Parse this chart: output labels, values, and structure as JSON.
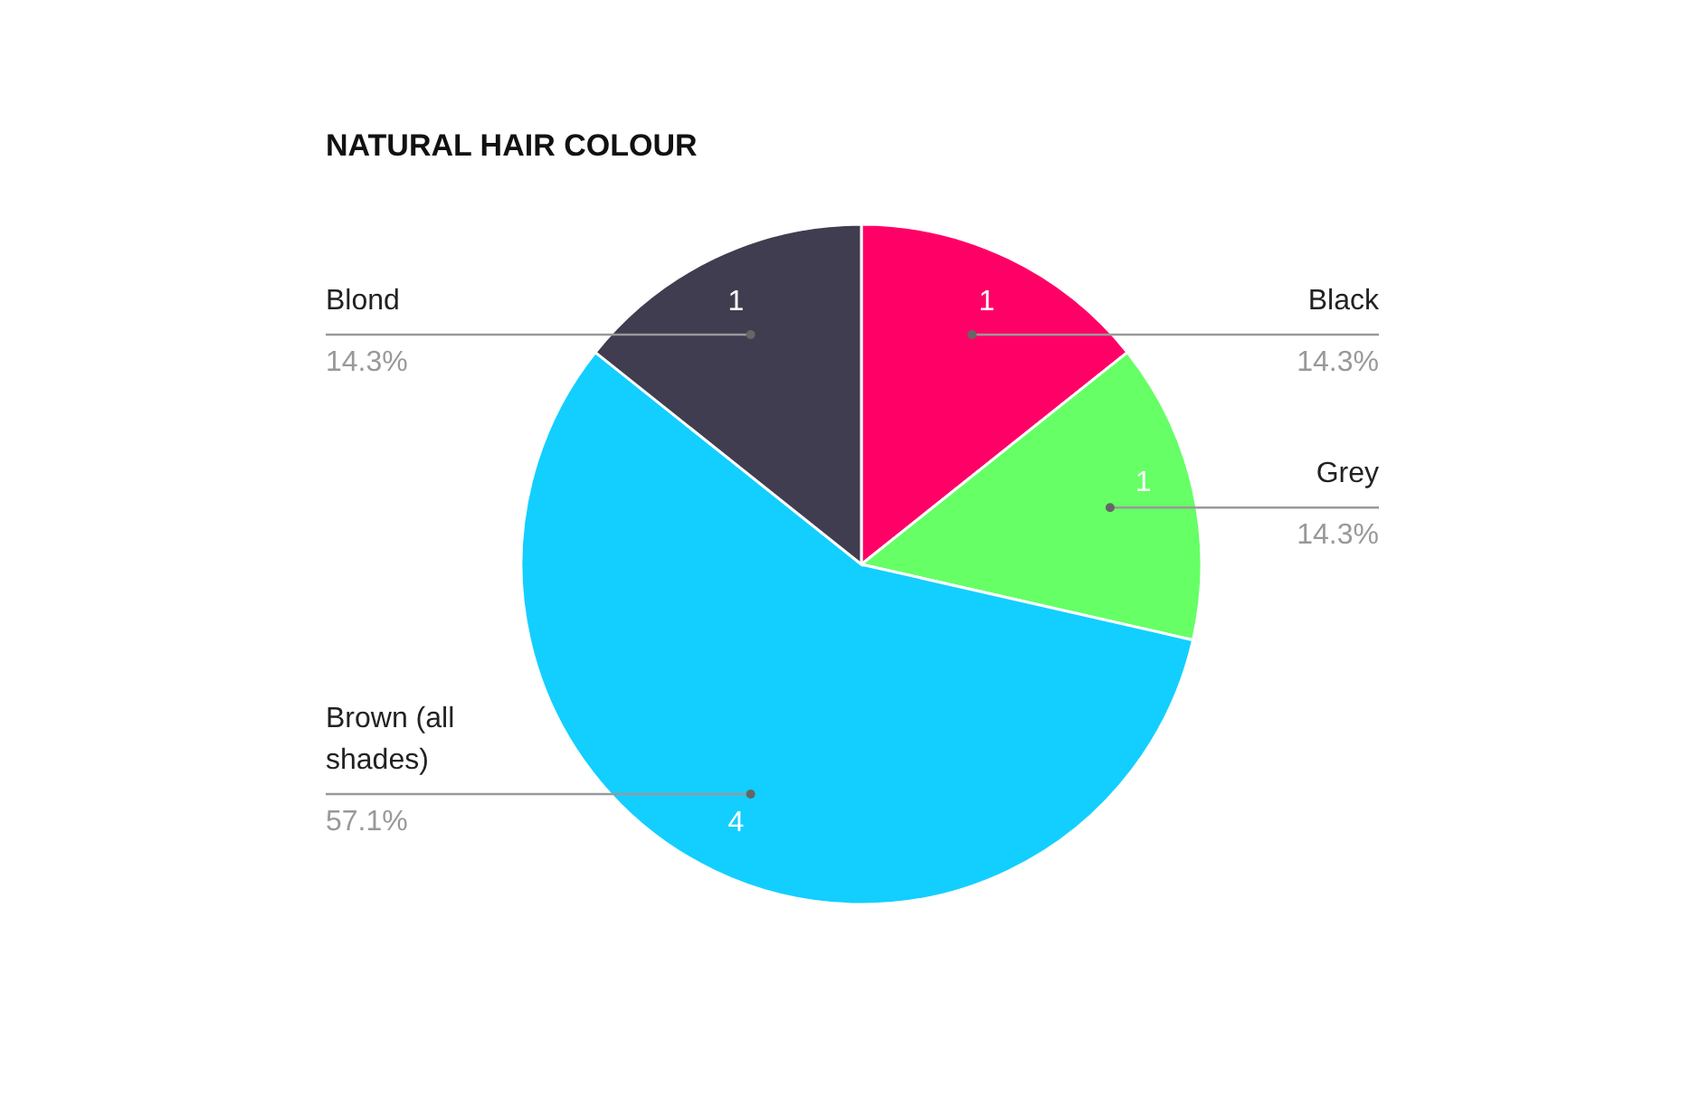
{
  "chart_data": {
    "type": "pie",
    "title": "NATURAL HAIR COLOUR",
    "categories": [
      "Black",
      "Grey",
      "Brown (all shades)",
      "Blond"
    ],
    "values": [
      1,
      1,
      4,
      1
    ],
    "colors": [
      "#ff0066",
      "#66ff66",
      "#12cfff",
      "#403d50"
    ],
    "value_labels": [
      "1",
      "1",
      "4",
      "1"
    ],
    "annotations": [
      {
        "text": "14.3%",
        "x": "Black"
      },
      {
        "text": "14.3%",
        "x": "Grey"
      },
      {
        "text": "57.1%",
        "x": "Brown (all shades)"
      },
      {
        "text": "14.3%",
        "x": "Blond"
      }
    ]
  }
}
